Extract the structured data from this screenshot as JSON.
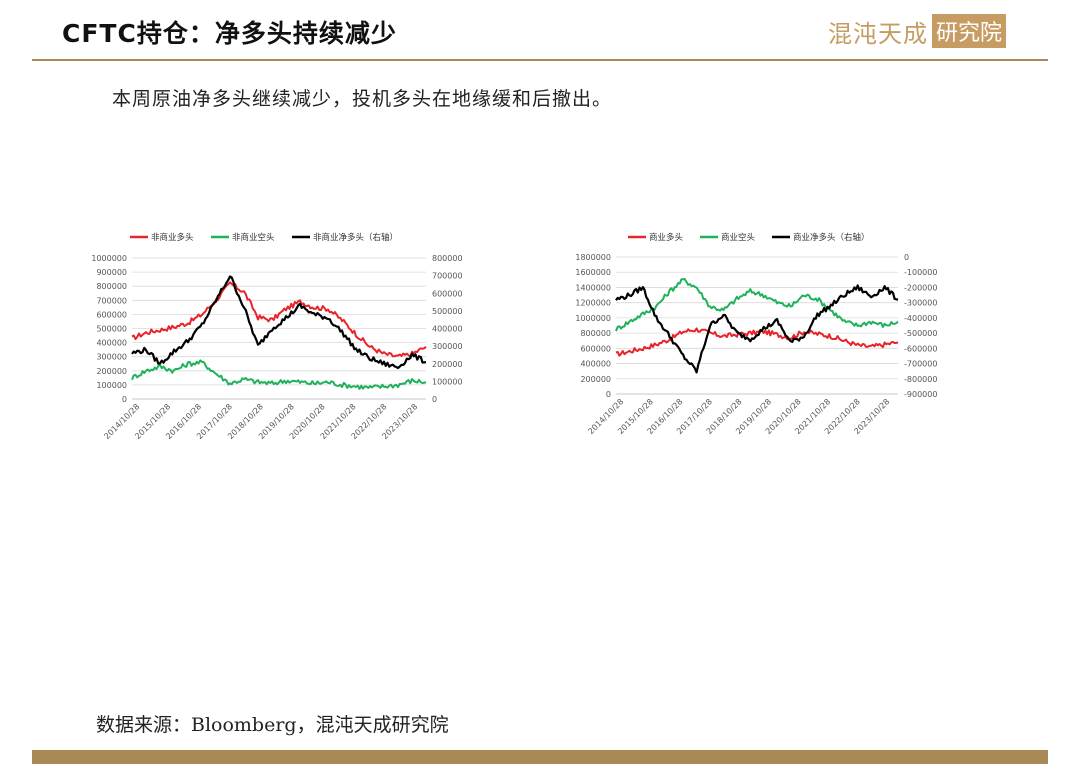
{
  "header": {
    "title": "CFTC持仓：净多头持续减少",
    "logo_text": "混沌天成",
    "logo_box": "研究院"
  },
  "summary": "本周原油净多头继续减少，投机多头在地缘缓和后撤出。",
  "source": "数据来源：Bloomberg，混沌天成研究院",
  "colors": {
    "red": "#e8232a",
    "green": "#1fb25a",
    "black": "#000000",
    "accent": "#a98a57"
  },
  "chart_data": [
    {
      "type": "line",
      "x_ticks": [
        "2014/10/28",
        "2015/10/28",
        "2016/10/28",
        "2017/10/28",
        "2018/10/28",
        "2019/10/28",
        "2020/10/28",
        "2021/10/28",
        "2022/10/28",
        "2023/10/28"
      ],
      "y_left": {
        "ticks": [
          "1000000",
          "900000",
          "800000",
          "700000",
          "600000",
          "500000",
          "400000",
          "300000",
          "200000",
          "100000",
          "0"
        ],
        "range": [
          0,
          1000000
        ]
      },
      "y_right": {
        "ticks": [
          "800000",
          "700000",
          "600000",
          "500000",
          "400000",
          "300000",
          "200000",
          "100000",
          "0"
        ],
        "range": [
          0,
          800000
        ]
      },
      "series": [
        {
          "name": "非商业多头",
          "axis": "left",
          "color": "#e8232a",
          "values": [
            430000,
            470000,
            490000,
            510000,
            540000,
            600000,
            700000,
            820000,
            760000,
            580000,
            560000,
            640000,
            690000,
            650000,
            640000,
            560000,
            460000,
            370000,
            320000,
            300000,
            320000,
            370000
          ]
        },
        {
          "name": "非商业空头",
          "axis": "left",
          "color": "#1fb25a",
          "values": [
            150000,
            200000,
            230000,
            200000,
            250000,
            260000,
            180000,
            110000,
            140000,
            120000,
            110000,
            130000,
            120000,
            110000,
            120000,
            100000,
            90000,
            80000,
            90000,
            100000,
            130000,
            120000
          ]
        },
        {
          "name": "非商业净多头（右轴）",
          "axis": "right",
          "color": "#000000",
          "values": [
            260000,
            280000,
            200000,
            270000,
            330000,
            420000,
            560000,
            700000,
            520000,
            300000,
            400000,
            460000,
            530000,
            480000,
            460000,
            380000,
            280000,
            230000,
            200000,
            180000,
            250000,
            210000
          ]
        }
      ]
    },
    {
      "type": "line",
      "x_ticks": [
        "2014/10/28",
        "2015/10/28",
        "2016/10/28",
        "2017/10/28",
        "2018/10/28",
        "2019/10/28",
        "2020/10/28",
        "2021/10/28",
        "2022/10/28",
        "2023/10/28"
      ],
      "y_left": {
        "ticks": [
          "1800000",
          "1600000",
          "1400000",
          "1200000",
          "1000000",
          "800000",
          "600000",
          "400000",
          "200000",
          "0"
        ],
        "range": [
          0,
          1800000
        ]
      },
      "y_right": {
        "ticks": [
          "0",
          "-100000",
          "-200000",
          "-300000",
          "-400000",
          "-500000",
          "-600000",
          "-700000",
          "-800000",
          "-900000"
        ],
        "range": [
          -900000,
          0
        ]
      },
      "series": [
        {
          "name": "商业多头",
          "axis": "left",
          "color": "#e8232a",
          "values": [
            520000,
            560000,
            600000,
            650000,
            720000,
            820000,
            850000,
            800000,
            760000,
            780000,
            800000,
            820000,
            780000,
            740000,
            820000,
            790000,
            760000,
            700000,
            640000,
            620000,
            650000,
            680000
          ]
        },
        {
          "name": "商业空头",
          "axis": "left",
          "color": "#1fb25a",
          "values": [
            850000,
            950000,
            1050000,
            1150000,
            1350000,
            1500000,
            1400000,
            1150000,
            1100000,
            1250000,
            1350000,
            1300000,
            1200000,
            1150000,
            1300000,
            1250000,
            1100000,
            950000,
            900000,
            950000,
            900000,
            950000
          ]
        },
        {
          "name": "商业净多头（右轴）",
          "axis": "right",
          "color": "#000000",
          "values": [
            -280000,
            -250000,
            -200000,
            -400000,
            -520000,
            -650000,
            -750000,
            -450000,
            -380000,
            -500000,
            -540000,
            -470000,
            -420000,
            -560000,
            -520000,
            -380000,
            -320000,
            -250000,
            -200000,
            -260000,
            -200000,
            -280000
          ]
        }
      ]
    }
  ]
}
